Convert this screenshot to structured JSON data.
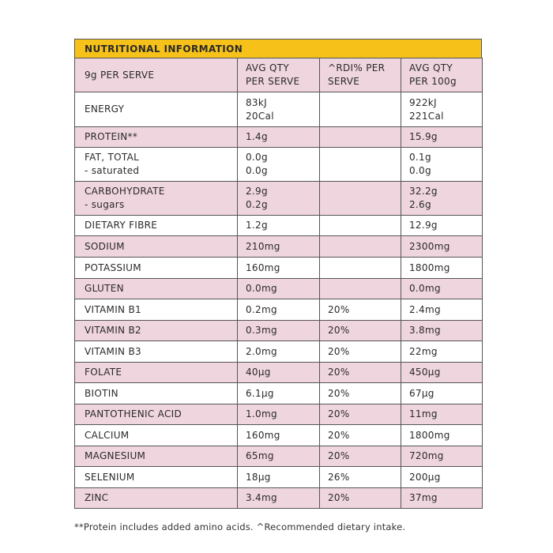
{
  "table": {
    "title": "NUTRITIONAL INFORMATION",
    "header": {
      "col1": [
        "9g PER SERVE"
      ],
      "col2": [
        "AVG QTY",
        "PER SERVE"
      ],
      "col3": [
        "^RDI% PER",
        "SERVE"
      ],
      "col4": [
        "AVG QTY",
        "PER 100g"
      ]
    },
    "rows": [
      {
        "label": [
          "ENERGY"
        ],
        "serve": [
          "83kJ",
          "20Cal"
        ],
        "rdi": [],
        "per100": [
          "922kJ",
          "221Cal"
        ]
      },
      {
        "label": [
          "PROTEIN**"
        ],
        "serve": [
          "1.4g"
        ],
        "rdi": [],
        "per100": [
          "15.9g"
        ]
      },
      {
        "label": [
          "FAT, TOTAL",
          "- saturated"
        ],
        "serve": [
          "0.0g",
          "0.0g"
        ],
        "rdi": [],
        "per100": [
          "0.1g",
          "0.0g"
        ]
      },
      {
        "label": [
          "CARBOHYDRATE",
          "- sugars"
        ],
        "serve": [
          "2.9g",
          "0.2g"
        ],
        "rdi": [],
        "per100": [
          "32.2g",
          "2.6g"
        ]
      },
      {
        "label": [
          "DIETARY FIBRE"
        ],
        "serve": [
          "1.2g"
        ],
        "rdi": [],
        "per100": [
          "12.9g"
        ]
      },
      {
        "label": [
          "SODIUM"
        ],
        "serve": [
          "210mg"
        ],
        "rdi": [],
        "per100": [
          "2300mg"
        ]
      },
      {
        "label": [
          "POTASSIUM"
        ],
        "serve": [
          "160mg"
        ],
        "rdi": [],
        "per100": [
          "1800mg"
        ]
      },
      {
        "label": [
          "GLUTEN"
        ],
        "serve": [
          "0.0mg"
        ],
        "rdi": [],
        "per100": [
          "0.0mg"
        ]
      },
      {
        "label": [
          "VITAMIN B1"
        ],
        "serve": [
          "0.2mg"
        ],
        "rdi": [
          "20%"
        ],
        "per100": [
          "2.4mg"
        ]
      },
      {
        "label": [
          "VITAMIN B2"
        ],
        "serve": [
          "0.3mg"
        ],
        "rdi": [
          "20%"
        ],
        "per100": [
          "3.8mg"
        ]
      },
      {
        "label": [
          "VITAMIN B3"
        ],
        "serve": [
          "2.0mg"
        ],
        "rdi": [
          "20%"
        ],
        "per100": [
          "22mg"
        ]
      },
      {
        "label": [
          "FOLATE"
        ],
        "serve": [
          "40µg"
        ],
        "rdi": [
          "20%"
        ],
        "per100": [
          "450µg"
        ]
      },
      {
        "label": [
          "BIOTIN"
        ],
        "serve": [
          "6.1µg"
        ],
        "rdi": [
          "20%"
        ],
        "per100": [
          "67µg"
        ]
      },
      {
        "label": [
          "PANTOTHENIC ACID"
        ],
        "serve": [
          "1.0mg"
        ],
        "rdi": [
          "20%"
        ],
        "per100": [
          "11mg"
        ]
      },
      {
        "label": [
          "CALCIUM"
        ],
        "serve": [
          "160mg"
        ],
        "rdi": [
          "20%"
        ],
        "per100": [
          "1800mg"
        ]
      },
      {
        "label": [
          "MAGNESIUM"
        ],
        "serve": [
          "65mg"
        ],
        "rdi": [
          "20%"
        ],
        "per100": [
          "720mg"
        ]
      },
      {
        "label": [
          "SELENIUM"
        ],
        "serve": [
          "18µg"
        ],
        "rdi": [
          "26%"
        ],
        "per100": [
          "200µg"
        ]
      },
      {
        "label": [
          "ZINC"
        ],
        "serve": [
          "3.4mg"
        ],
        "rdi": [
          "20%"
        ],
        "per100": [
          "37mg"
        ]
      }
    ]
  },
  "footnote": "**Protein includes added amino acids. ^Recommended dietary intake.",
  "colors": {
    "title_bg": "#f6c21a",
    "row_pink": "#efd5de",
    "row_white": "#ffffff",
    "border": "#555555"
  }
}
